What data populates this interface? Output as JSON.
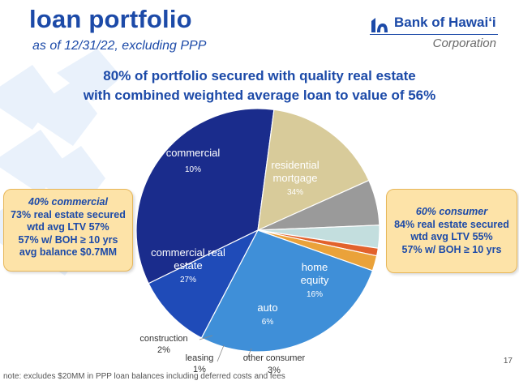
{
  "slide": {
    "title": "loan portfolio",
    "subtitle": "as of 12/31/22, excluding PPP",
    "headline_line1": "80% of portfolio secured with quality real estate",
    "headline_line2": "with combined weighted average loan to value of 56%",
    "footnote": "note: excludes $20MM in PPP loan balances including deferred costs and fees",
    "page_number": "17"
  },
  "logo": {
    "name": "Bank of Hawai‘i",
    "sub": "Corporation",
    "color": "#1c4aa8"
  },
  "callouts": {
    "left": {
      "header": "40% commercial",
      "lines": [
        "73% real estate secured",
        "wtd avg LTV 57%",
        "57% w/ BOH ≥ 10 yrs",
        "avg balance $0.7MM"
      ]
    },
    "right": {
      "header": "60% consumer",
      "lines": [
        "84% real estate secured",
        "wtd avg LTV 55%",
        "57% w/ BOH ≥ 10 yrs"
      ]
    }
  },
  "chart_data": {
    "type": "pie",
    "slices": [
      {
        "label": "residential mortgage",
        "value": 34,
        "value_label": "34%",
        "color": "#1a2c8c"
      },
      {
        "label": "home equity",
        "value": 16,
        "value_label": "16%",
        "color": "#d8cb9a"
      },
      {
        "label": "auto",
        "value": 6,
        "value_label": "6%",
        "color": "#9a9a9a"
      },
      {
        "label": "other consumer",
        "value": 3,
        "value_label": "3%",
        "color": "#c3dede"
      },
      {
        "label": "leasing",
        "value": 1,
        "value_label": "1%",
        "color": "#e2622c"
      },
      {
        "label": "construction",
        "value": 2,
        "value_label": "2%",
        "color": "#eaa23a"
      },
      {
        "label": "commercial real estate",
        "value": 27,
        "value_label": "27%",
        "color": "#3f8fd8"
      },
      {
        "label": "commercial",
        "value": 10,
        "value_label": "10%",
        "color": "#1f4bb8"
      }
    ]
  }
}
